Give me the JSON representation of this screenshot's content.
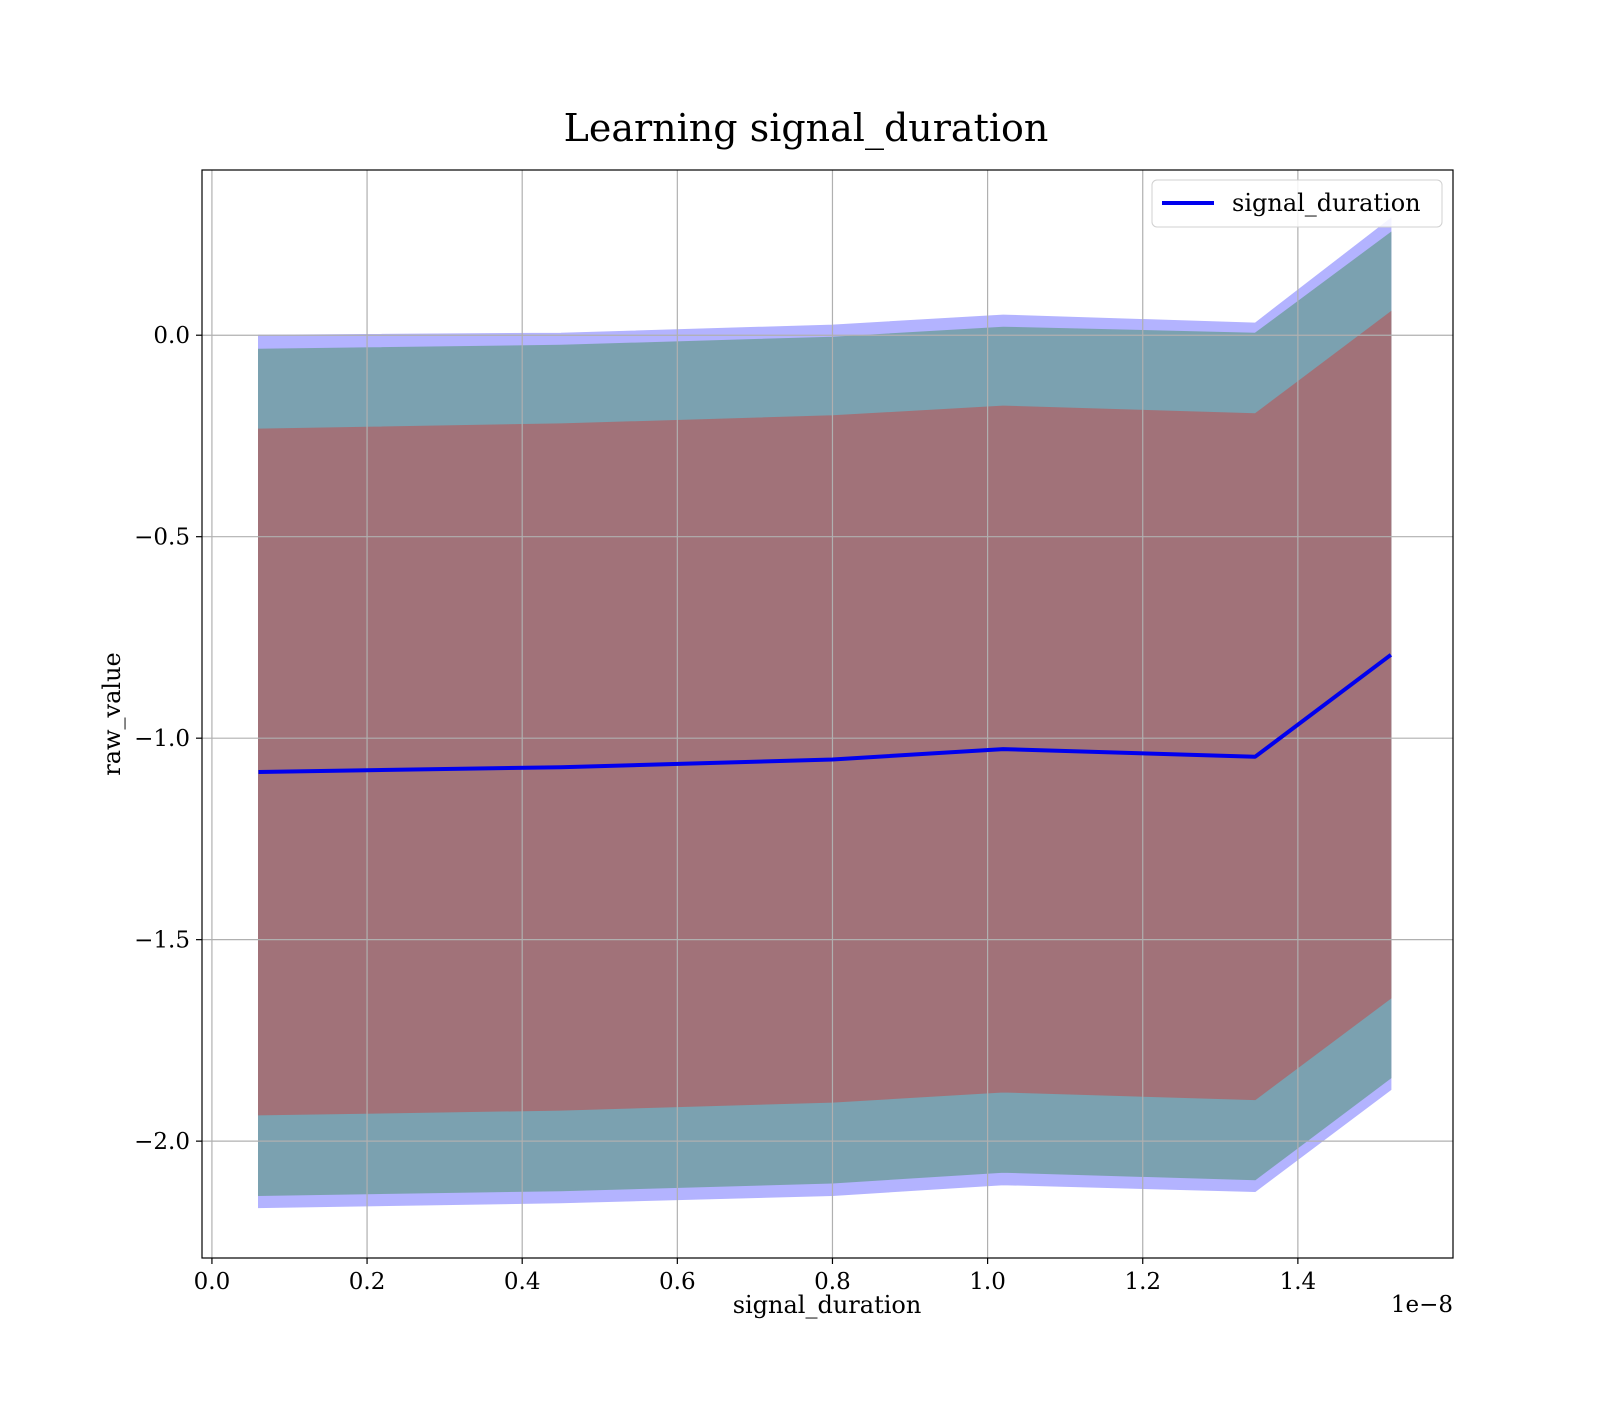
{
  "chart_data": {
    "type": "line",
    "title": "Learning signal_duration",
    "xlabel": "signal_duration",
    "ylabel": "raw_value",
    "x_offset_label": "1e−8",
    "xlim": [
      -1.28e-10,
      1.6e-08
    ],
    "ylim": [
      -2.29,
      0.41
    ],
    "grid": true,
    "legend_position": "top-right",
    "x_ticks": [
      0.0,
      2e-09,
      4e-09,
      6e-09,
      8e-09,
      1e-08,
      1.2e-08,
      1.4e-08
    ],
    "x_tick_labels": [
      "0.0",
      "0.2",
      "0.4",
      "0.6",
      "0.8",
      "1.0",
      "1.2",
      "1.4"
    ],
    "y_ticks": [
      0.0,
      -0.5,
      -1.0,
      -1.5,
      -2.0
    ],
    "y_tick_labels": [
      "0.0",
      "−0.5",
      "−1.0",
      "−1.5",
      "−2.0"
    ],
    "x": [
      6e-10,
      4.5e-09,
      8e-09,
      1.02e-08,
      1.345e-08,
      1.52e-08
    ],
    "series": [
      {
        "name": "signal_duration",
        "color": "#0000ee",
        "values": [
          -1.084,
          -1.072,
          -1.053,
          -1.027,
          -1.046,
          -0.793
        ]
      }
    ],
    "bands": [
      {
        "color": "#b3b3ff",
        "upper": [
          0.0,
          0.005,
          0.025,
          0.05,
          0.03,
          0.29
        ],
        "lower": [
          -2.165,
          -2.153,
          -2.135,
          -2.108,
          -2.125,
          -1.872
        ]
      },
      {
        "color": "#7ba1b0",
        "upper": [
          -0.035,
          -0.025,
          -0.005,
          0.02,
          0.005,
          0.255
        ],
        "lower": [
          -2.135,
          -2.123,
          -2.104,
          -2.077,
          -2.096,
          -1.843
        ]
      },
      {
        "color": "#a17279",
        "upper": [
          -0.233,
          -0.22,
          -0.2,
          -0.176,
          -0.195,
          0.058
        ],
        "lower": [
          -1.935,
          -1.923,
          -1.903,
          -1.878,
          -1.897,
          -1.645
        ]
      }
    ]
  }
}
